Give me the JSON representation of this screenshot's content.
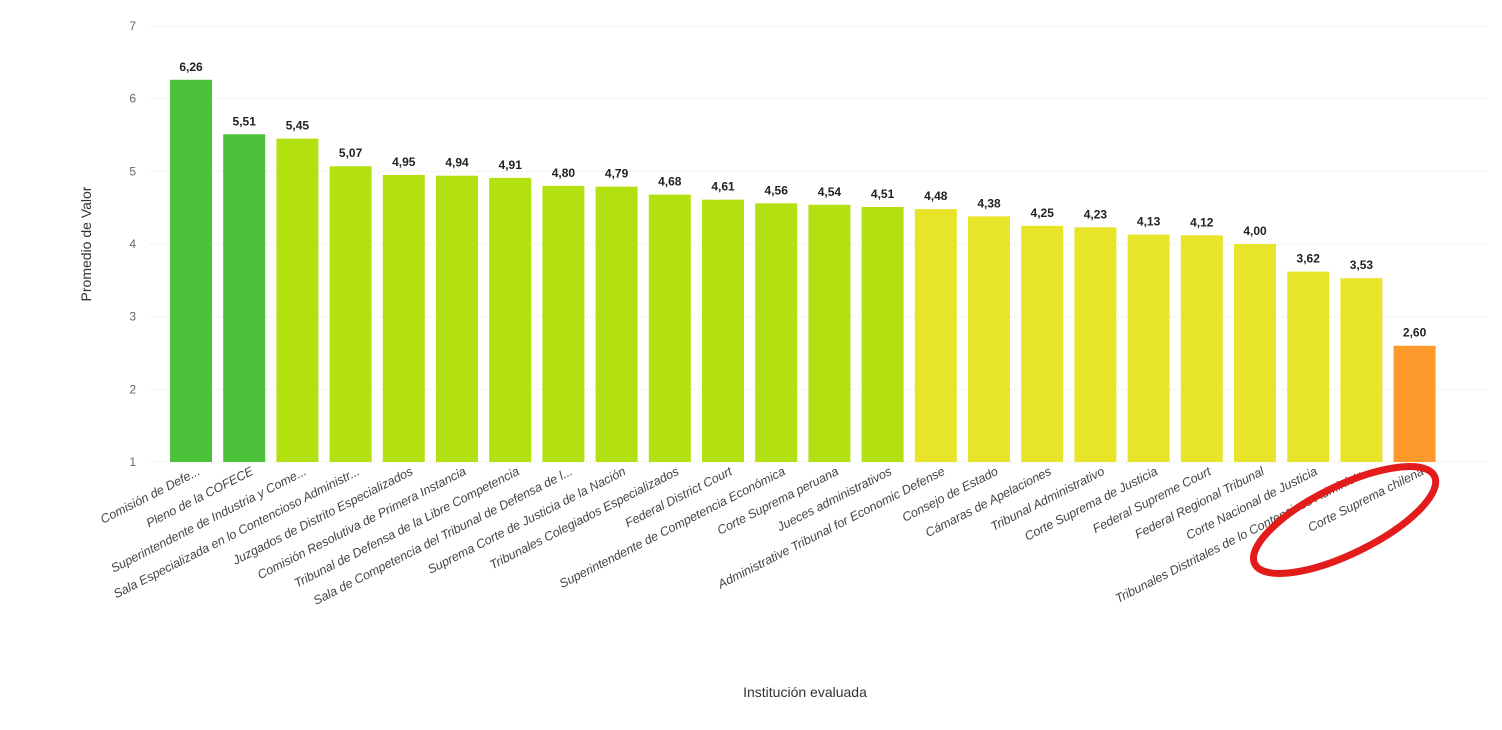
{
  "chart_data": {
    "type": "bar",
    "title": "",
    "xlabel": "Institución evaluada",
    "ylabel": "Promedio de Valor",
    "ylim": [
      1,
      7
    ],
    "yticks": [
      1,
      2,
      3,
      4,
      5,
      6,
      7
    ],
    "grid": true,
    "categories": [
      "Comisión de Defe...",
      "Pleno de la COFECE",
      "Superintendente de Industria y Come...",
      "Sala Especializada en lo Contencioso Administr...",
      "Juzgados de Distrito Especializados",
      "Comisión Resolutiva de Primera Instancia",
      "Tribunal de Defensa de la Libre Competencia",
      "Sala de Competencia del Tribunal de Defensa de l...",
      "Suprema Corte de Justicia de la Nación",
      "Tribunales Colegiados Especializados",
      "Federal District Court",
      "Superintendente de Competencia Económica",
      "Corte Suprema peruana",
      "Jueces administrativos",
      "Administrative Tribunal for Economic Defense",
      "Consejo de Estado",
      "Cámaras de Apelaciones",
      "Tribunal Administrativo",
      "Corte Suprema de Justicia",
      "Federal Supreme Court",
      "Federal Regional Tribunal",
      "Corte Nacional de Justicia",
      "Tribunales Distritales de lo Contencioso Administr...",
      "Corte Suprema chilena"
    ],
    "values": [
      6.26,
      5.51,
      5.45,
      5.07,
      4.95,
      4.94,
      4.91,
      4.8,
      4.79,
      4.68,
      4.61,
      4.56,
      4.54,
      4.51,
      4.48,
      4.38,
      4.25,
      4.23,
      4.13,
      4.12,
      4.0,
      3.62,
      3.53,
      2.6
    ],
    "value_labels": [
      "6,26",
      "5,51",
      "5,45",
      "5,07",
      "4,95",
      "4,94",
      "4,91",
      "4,80",
      "4,79",
      "4,68",
      "4,61",
      "4,56",
      "4,54",
      "4,51",
      "4,48",
      "4,38",
      "4,25",
      "4,23",
      "4,13",
      "4,12",
      "4,00",
      "3,62",
      "3,53",
      "2,60"
    ],
    "bar_colors": [
      "#4cc23a",
      "#4cc23a",
      "#b2e011",
      "#b2e011",
      "#b2e011",
      "#b2e011",
      "#b2e011",
      "#b2e011",
      "#b2e011",
      "#b2e011",
      "#b2e011",
      "#b2e011",
      "#b2e011",
      "#b2e011",
      "#e8e42a",
      "#e8e42a",
      "#e8e42a",
      "#e8e42a",
      "#e8e42a",
      "#e8e42a",
      "#e8e42a",
      "#e8e42a",
      "#e8e42a",
      "#fd9a2b"
    ],
    "highlight": {
      "category": "Corte Suprema chilena",
      "shape": "ellipse",
      "color": "#e31b1b"
    }
  }
}
